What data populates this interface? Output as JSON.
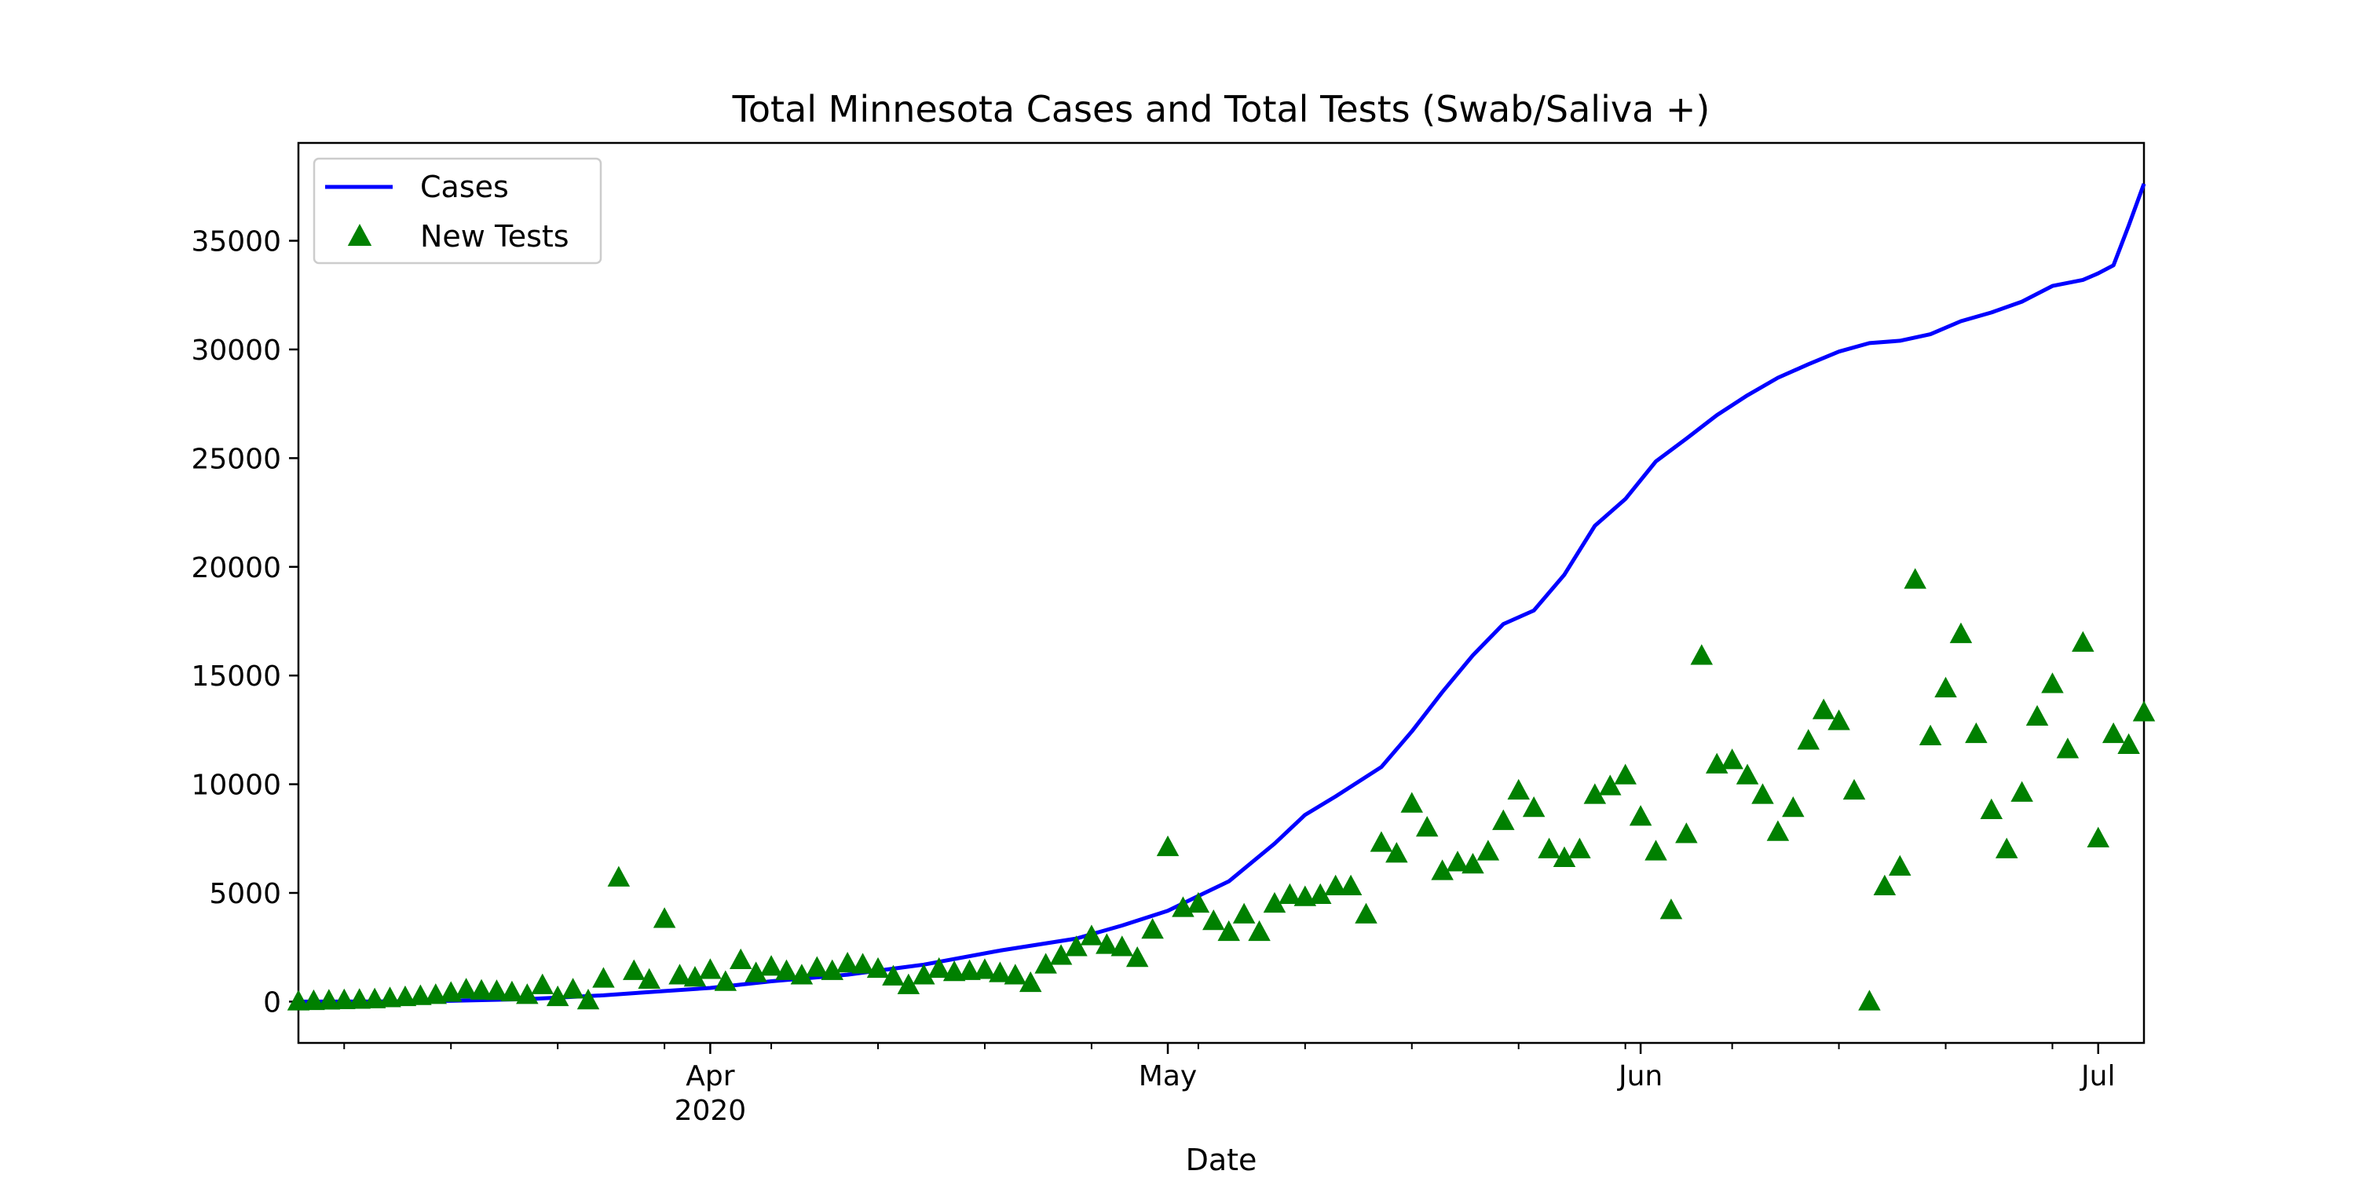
{
  "chart_data": {
    "type": "line",
    "title": "Total Minnesota Cases and Total Tests (Swab/Saliva +)",
    "xlabel": "Date",
    "ylabel": "",
    "x_range": [
      "2020-03-05",
      "2020-07-04"
    ],
    "ylim": [
      -1900,
      39500
    ],
    "grid": false,
    "legend": {
      "placement": "top-left",
      "entries": [
        "Cases",
        "New Tests"
      ]
    },
    "x_ticks": [
      {
        "date": "2020-04-01",
        "label": "Apr",
        "sublabel": "2020"
      },
      {
        "date": "2020-05-01",
        "label": "May",
        "sublabel": ""
      },
      {
        "date": "2020-06-01",
        "label": "Jun",
        "sublabel": ""
      },
      {
        "date": "2020-07-01",
        "label": "Jul",
        "sublabel": ""
      }
    ],
    "y_ticks": [
      0,
      5000,
      10000,
      15000,
      20000,
      25000,
      30000,
      35000
    ],
    "series": [
      {
        "name": "Cases",
        "kind": "line",
        "color": "#0000ff",
        "points": [
          [
            "2020-03-05",
            0
          ],
          [
            "2020-03-10",
            5
          ],
          [
            "2020-03-15",
            35
          ],
          [
            "2020-03-20",
            115
          ],
          [
            "2020-03-25",
            290
          ],
          [
            "2020-03-28",
            440
          ],
          [
            "2020-04-01",
            630
          ],
          [
            "2020-04-05",
            935
          ],
          [
            "2020-04-10",
            1240
          ],
          [
            "2020-04-15",
            1700
          ],
          [
            "2020-04-20",
            2350
          ],
          [
            "2020-04-25",
            2900
          ],
          [
            "2020-04-28",
            3500
          ],
          [
            "2020-05-01",
            4180
          ],
          [
            "2020-05-03",
            4860
          ],
          [
            "2020-05-05",
            5530
          ],
          [
            "2020-05-08",
            7270
          ],
          [
            "2020-05-10",
            8590
          ],
          [
            "2020-05-12",
            9440
          ],
          [
            "2020-05-15",
            10790
          ],
          [
            "2020-05-17",
            12430
          ],
          [
            "2020-05-19",
            14240
          ],
          [
            "2020-05-21",
            15930
          ],
          [
            "2020-05-23",
            17370
          ],
          [
            "2020-05-25",
            17990
          ],
          [
            "2020-05-27",
            19640
          ],
          [
            "2020-05-29",
            21890
          ],
          [
            "2020-05-31",
            23120
          ],
          [
            "2020-06-02",
            24850
          ],
          [
            "2020-06-04",
            25900
          ],
          [
            "2020-06-06",
            26980
          ],
          [
            "2020-06-08",
            27890
          ],
          [
            "2020-06-10",
            28700
          ],
          [
            "2020-06-12",
            29320
          ],
          [
            "2020-06-14",
            29900
          ],
          [
            "2020-06-16",
            30290
          ],
          [
            "2020-06-18",
            30400
          ],
          [
            "2020-06-20",
            30700
          ],
          [
            "2020-06-22",
            31300
          ],
          [
            "2020-06-24",
            31700
          ],
          [
            "2020-06-26",
            32200
          ],
          [
            "2020-06-28",
            32920
          ],
          [
            "2020-06-30",
            33200
          ],
          [
            "2020-07-01",
            33500
          ],
          [
            "2020-07-02",
            33870
          ],
          [
            "2020-07-03",
            35700
          ],
          [
            "2020-07-04",
            37620
          ]
        ]
      },
      {
        "name": "New Tests",
        "kind": "scatter",
        "color": "#008000",
        "marker": "triangle",
        "points": [
          [
            "2020-03-05",
            0
          ],
          [
            "2020-03-06",
            20
          ],
          [
            "2020-03-07",
            40
          ],
          [
            "2020-03-08",
            60
          ],
          [
            "2020-03-09",
            80
          ],
          [
            "2020-03-10",
            100
          ],
          [
            "2020-03-11",
            150
          ],
          [
            "2020-03-12",
            200
          ],
          [
            "2020-03-13",
            250
          ],
          [
            "2020-03-14",
            300
          ],
          [
            "2020-03-15",
            400
          ],
          [
            "2020-03-16",
            550
          ],
          [
            "2020-03-17",
            500
          ],
          [
            "2020-03-18",
            480
          ],
          [
            "2020-03-19",
            420
          ],
          [
            "2020-03-20",
            300
          ],
          [
            "2020-03-21",
            750
          ],
          [
            "2020-03-22",
            200
          ],
          [
            "2020-03-23",
            550
          ],
          [
            "2020-03-24",
            50
          ],
          [
            "2020-03-25",
            1050
          ],
          [
            "2020-03-26",
            5700
          ],
          [
            "2020-03-27",
            1400
          ],
          [
            "2020-03-28",
            1000
          ],
          [
            "2020-03-29",
            3800
          ],
          [
            "2020-03-30",
            1200
          ],
          [
            "2020-03-31",
            1100
          ],
          [
            "2020-04-01",
            1450
          ],
          [
            "2020-04-02",
            900
          ],
          [
            "2020-04-03",
            1900
          ],
          [
            "2020-04-04",
            1300
          ],
          [
            "2020-04-05",
            1600
          ],
          [
            "2020-04-06",
            1400
          ],
          [
            "2020-04-07",
            1200
          ],
          [
            "2020-04-08",
            1550
          ],
          [
            "2020-04-09",
            1400
          ],
          [
            "2020-04-10",
            1750
          ],
          [
            "2020-04-11",
            1700
          ],
          [
            "2020-04-12",
            1500
          ],
          [
            "2020-04-13",
            1150
          ],
          [
            "2020-04-14",
            750
          ],
          [
            "2020-04-15",
            1200
          ],
          [
            "2020-04-16",
            1500
          ],
          [
            "2020-04-17",
            1350
          ],
          [
            "2020-04-18",
            1400
          ],
          [
            "2020-04-19",
            1450
          ],
          [
            "2020-04-20",
            1300
          ],
          [
            "2020-04-21",
            1200
          ],
          [
            "2020-04-22",
            850
          ],
          [
            "2020-04-23",
            1700
          ],
          [
            "2020-04-24",
            2100
          ],
          [
            "2020-04-25",
            2500
          ],
          [
            "2020-04-26",
            3000
          ],
          [
            "2020-04-27",
            2600
          ],
          [
            "2020-04-28",
            2500
          ],
          [
            "2020-04-29",
            2000
          ],
          [
            "2020-04-30",
            3300
          ],
          [
            "2020-05-01",
            7100
          ],
          [
            "2020-05-02",
            4300
          ],
          [
            "2020-05-03",
            4500
          ],
          [
            "2020-05-04",
            3700
          ],
          [
            "2020-05-05",
            3200
          ],
          [
            "2020-05-06",
            4000
          ],
          [
            "2020-05-07",
            3200
          ],
          [
            "2020-05-08",
            4500
          ],
          [
            "2020-05-09",
            4900
          ],
          [
            "2020-05-10",
            4800
          ],
          [
            "2020-05-11",
            4900
          ],
          [
            "2020-05-12",
            5300
          ],
          [
            "2020-05-13",
            5300
          ],
          [
            "2020-05-14",
            4000
          ],
          [
            "2020-05-15",
            7300
          ],
          [
            "2020-05-16",
            6800
          ],
          [
            "2020-05-17",
            9100
          ],
          [
            "2020-05-18",
            8000
          ],
          [
            "2020-05-19",
            6000
          ],
          [
            "2020-05-20",
            6400
          ],
          [
            "2020-05-21",
            6300
          ],
          [
            "2020-05-22",
            6900
          ],
          [
            "2020-05-23",
            8300
          ],
          [
            "2020-05-24",
            9700
          ],
          [
            "2020-05-25",
            8900
          ],
          [
            "2020-05-26",
            7000
          ],
          [
            "2020-05-27",
            6600
          ],
          [
            "2020-05-28",
            7000
          ],
          [
            "2020-05-29",
            9500
          ],
          [
            "2020-05-30",
            9900
          ],
          [
            "2020-05-31",
            10400
          ],
          [
            "2020-06-01",
            8500
          ],
          [
            "2020-06-02",
            6900
          ],
          [
            "2020-06-03",
            4200
          ],
          [
            "2020-06-04",
            7700
          ],
          [
            "2020-06-05",
            15900
          ],
          [
            "2020-06-06",
            10900
          ],
          [
            "2020-06-07",
            11100
          ],
          [
            "2020-06-08",
            10400
          ],
          [
            "2020-06-09",
            9500
          ],
          [
            "2020-06-10",
            7800
          ],
          [
            "2020-06-11",
            8900
          ],
          [
            "2020-06-12",
            12000
          ],
          [
            "2020-06-13",
            13400
          ],
          [
            "2020-06-14",
            12900
          ],
          [
            "2020-06-15",
            9700
          ],
          [
            "2020-06-16",
            0
          ],
          [
            "2020-06-17",
            5300
          ],
          [
            "2020-06-18",
            6200
          ],
          [
            "2020-06-19",
            19400
          ],
          [
            "2020-06-20",
            12200
          ],
          [
            "2020-06-21",
            14400
          ],
          [
            "2020-06-22",
            16900
          ],
          [
            "2020-06-23",
            12300
          ],
          [
            "2020-06-24",
            8800
          ],
          [
            "2020-06-25",
            7000
          ],
          [
            "2020-06-26",
            9600
          ],
          [
            "2020-06-27",
            13100
          ],
          [
            "2020-06-28",
            14600
          ],
          [
            "2020-06-29",
            11600
          ],
          [
            "2020-06-30",
            16500
          ],
          [
            "2020-07-01",
            7500
          ],
          [
            "2020-07-02",
            12300
          ],
          [
            "2020-07-03",
            11800
          ],
          [
            "2020-07-04",
            13300
          ]
        ]
      }
    ]
  }
}
